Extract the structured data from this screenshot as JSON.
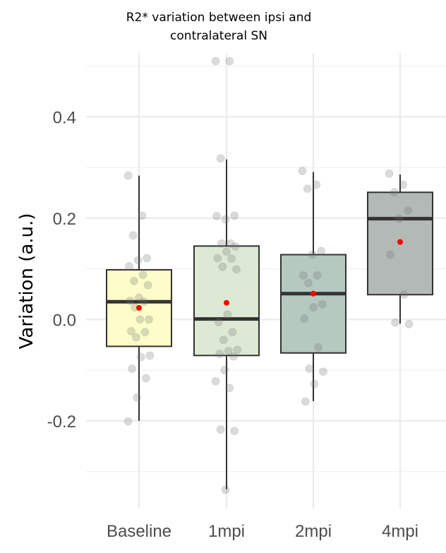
{
  "chart_data": {
    "type": "box",
    "title": "R2* variation between ipsi and contralateral SN",
    "xlabel": "",
    "ylabel": "Variation (a.u.)",
    "ylim": [
      -0.373,
      0.526
    ],
    "yticks": [
      -0.2,
      0.0,
      0.2,
      0.4
    ],
    "ytick_labels": [
      "-0.2",
      "0.0",
      "0.2",
      "0.4"
    ],
    "minor_grid": [
      -0.3,
      -0.1,
      0.1,
      0.3,
      0.5
    ],
    "grid": true,
    "categories": [
      "Baseline",
      "1mpi",
      "2mpi",
      "4mpi"
    ],
    "colors": [
      "#fdfdc9",
      "#dce9d4",
      "#b5c9c0",
      "#b3b9b6"
    ],
    "mean_color": "#ff0000",
    "boxes": [
      {
        "whisker_low": -0.2,
        "q1": -0.053,
        "median": 0.035,
        "q3": 0.098,
        "whisker_high": 0.284,
        "mean": 0.023
      },
      {
        "whisker_low": -0.335,
        "q1": -0.071,
        "median": 0.001,
        "q3": 0.145,
        "whisker_high": 0.316,
        "mean": 0.033
      },
      {
        "whisker_low": -0.161,
        "q1": -0.066,
        "median": 0.051,
        "q3": 0.128,
        "whisker_high": 0.291,
        "mean": 0.051
      },
      {
        "whisker_low": -0.008,
        "q1": 0.049,
        "median": 0.199,
        "q3": 0.251,
        "whisker_high": 0.286,
        "mean": 0.153
      }
    ],
    "points": [
      [
        0.284,
        0.205,
        0.166,
        0.121,
        0.117,
        0.105,
        0.088,
        0.076,
        0.068,
        0.043,
        0.037,
        0.035,
        0.024,
        0.0,
        0.0,
        -0.023,
        -0.025,
        -0.035,
        -0.071,
        -0.074,
        -0.097,
        -0.116,
        -0.154,
        -0.201
      ],
      [
        0.51,
        0.51,
        0.318,
        0.205,
        0.198,
        0.204,
        0.15,
        0.15,
        0.144,
        0.134,
        0.121,
        0.12,
        0.104,
        0.099,
        0.01,
        -0.005,
        -0.025,
        -0.04,
        -0.06,
        -0.062,
        -0.068,
        -0.073,
        -0.1,
        -0.122,
        -0.135,
        -0.217,
        -0.22,
        -0.336
      ],
      [
        0.293,
        0.266,
        0.258,
        0.135,
        0.128,
        0.087,
        0.087,
        0.072,
        0.03,
        0.024,
        0.002,
        -0.055,
        -0.097,
        -0.103,
        -0.127,
        -0.162
      ],
      [
        0.288,
        0.266,
        0.251,
        0.215,
        0.199,
        0.128,
        0.049,
        -0.006,
        -0.009
      ]
    ]
  }
}
